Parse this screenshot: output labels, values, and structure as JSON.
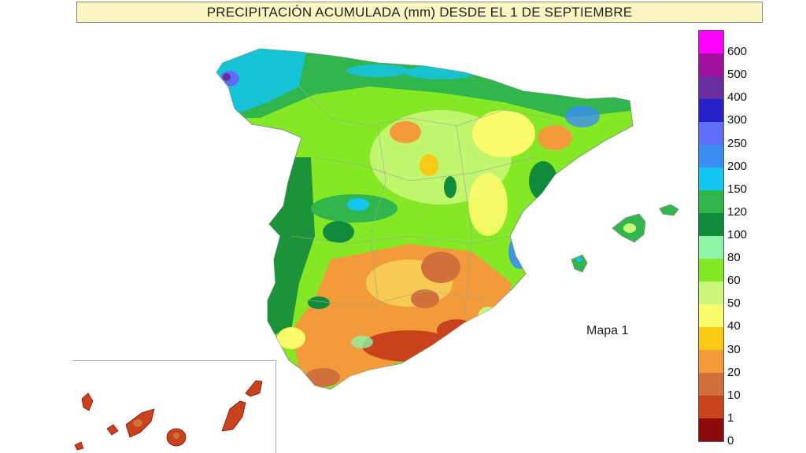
{
  "title": "PRECIPITACIÓN ACUMULADA (mm) DESDE EL 1 DE SEPTIEMBRE",
  "map_label": "Mapa 1",
  "legend": {
    "unit": "mm",
    "classes": [
      {
        "label": "600",
        "color": "#ff00ff"
      },
      {
        "label": "500",
        "color": "#a0109e"
      },
      {
        "label": "400",
        "color": "#6a2ea3"
      },
      {
        "label": "300",
        "color": "#2620c8"
      },
      {
        "label": "250",
        "color": "#5e6ef7"
      },
      {
        "label": "200",
        "color": "#3a8ef2"
      },
      {
        "label": "150",
        "color": "#12c6ef"
      },
      {
        "label": "120",
        "color": "#31b64e"
      },
      {
        "label": "100",
        "color": "#118a3c"
      },
      {
        "label": "80",
        "color": "#8ff3a5"
      },
      {
        "label": "60",
        "color": "#85e824"
      },
      {
        "label": "50",
        "color": "#cbf77b"
      },
      {
        "label": "40",
        "color": "#fcfb6c"
      },
      {
        "label": "30",
        "color": "#f9c915"
      },
      {
        "label": "20",
        "color": "#f39a3b"
      },
      {
        "label": "10",
        "color": "#d0703a"
      },
      {
        "label": "1",
        "color": "#c8421b"
      },
      {
        "label": "0",
        "color": "#8c0c0e"
      }
    ]
  },
  "regions": {
    "peninsula": "Península Ibérica",
    "baleares": "Islas Baleares",
    "canarias": "Islas Canarias"
  }
}
